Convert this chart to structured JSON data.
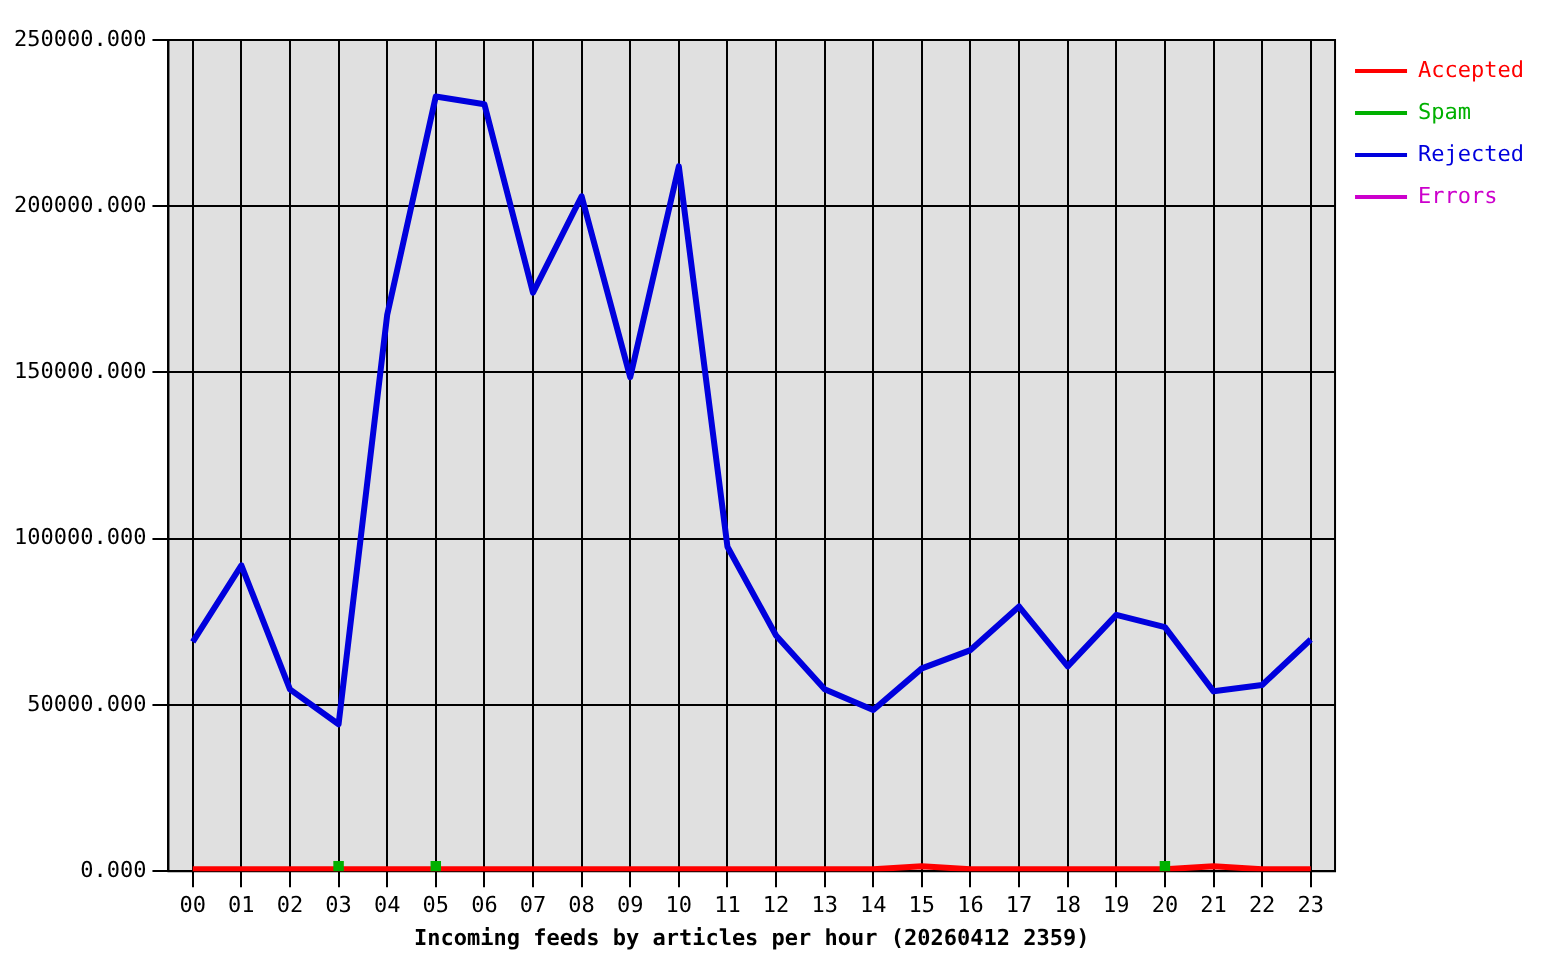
{
  "chart_data": {
    "type": "line",
    "xlabel": "Incoming feeds by articles per hour (20260412 2359)",
    "categories": [
      "00",
      "01",
      "02",
      "03",
      "04",
      "05",
      "06",
      "07",
      "08",
      "09",
      "10",
      "11",
      "12",
      "13",
      "14",
      "15",
      "16",
      "17",
      "18",
      "19",
      "20",
      "21",
      "22",
      "23"
    ],
    "series": [
      {
        "name": "Accepted",
        "color": "#ff0000",
        "values": [
          600,
          600,
          600,
          600,
          600,
          600,
          600,
          600,
          600,
          600,
          600,
          600,
          600,
          600,
          600,
          1500,
          600,
          600,
          600,
          600,
          600,
          1500,
          600,
          600
        ]
      },
      {
        "name": "Spam",
        "type": "scatter",
        "color": "#00b000",
        "values": [
          null,
          null,
          null,
          1500,
          null,
          1500,
          null,
          null,
          null,
          null,
          null,
          null,
          null,
          null,
          null,
          null,
          null,
          null,
          null,
          null,
          1500,
          null,
          null,
          null
        ]
      },
      {
        "name": "Rejected",
        "color": "#0000dd",
        "values": [
          69000,
          92000,
          54700,
          44200,
          167300,
          233000,
          230700,
          174000,
          203000,
          148600,
          212000,
          97600,
          70900,
          54700,
          48500,
          61000,
          66500,
          79600,
          61600,
          77100,
          73400,
          54100,
          56000,
          69700
        ]
      },
      {
        "name": "Errors",
        "color": "#cc00cc",
        "values": [
          null,
          null,
          null,
          null,
          null,
          null,
          null,
          null,
          null,
          null,
          null,
          null,
          null,
          null,
          null,
          null,
          null,
          null,
          null,
          null,
          null,
          null,
          null,
          null
        ]
      }
    ],
    "ylim": [
      0,
      250000
    ],
    "yticks": [
      {
        "value": 0,
        "label": "0.000"
      },
      {
        "value": 50000,
        "label": "50000.000"
      },
      {
        "value": 100000,
        "label": "100000.000"
      },
      {
        "value": 150000,
        "label": "150000.000"
      },
      {
        "value": 200000,
        "label": "200000.000"
      },
      {
        "value": 250000,
        "label": "250000.000"
      }
    ],
    "grid": true,
    "legend": "top right"
  }
}
